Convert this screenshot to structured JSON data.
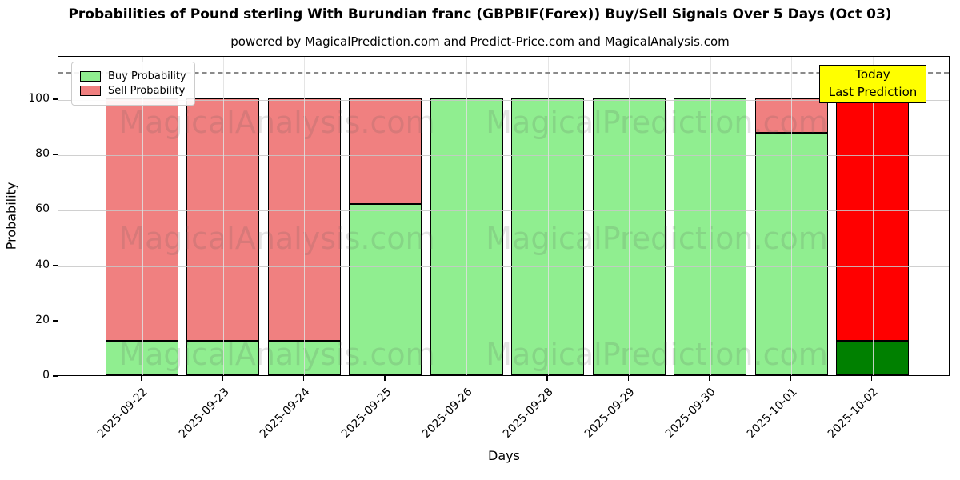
{
  "title": "Probabilities of Pound sterling With Burundian franc (GBPBIF(Forex)) Buy/Sell Signals Over 5 Days (Oct 03)",
  "subtitle": "powered by MagicalPrediction.com and Predict-Price.com and MagicalAnalysis.com",
  "axes": {
    "x_label": "Days",
    "y_label": "Probability",
    "y_ticks": [
      0,
      20,
      40,
      60,
      80,
      100
    ]
  },
  "legend": {
    "items": [
      {
        "label": "Buy Probability",
        "color": "#90EE90"
      },
      {
        "label": "Sell Probability",
        "color": "#F08080"
      }
    ]
  },
  "annotation": {
    "line1": "Today",
    "line2": "Last Prediction",
    "bg_color": "#FFFF00"
  },
  "watermarks": {
    "left_text": "MagicalAnalysis.com",
    "right_text": "MagicalPrediction.com"
  },
  "colors": {
    "buy": "#90EE90",
    "sell": "#F08080",
    "today_buy": "#008000",
    "today_sell": "#FF0000",
    "bar_edge": "#000000",
    "dashed_line": "#8A8A8A",
    "annotation_bg": "#FFFF00"
  },
  "chart_data": {
    "type": "bar",
    "stacked": true,
    "categories": [
      "2025-09-22",
      "2025-09-23",
      "2025-09-24",
      "2025-09-25",
      "2025-09-26",
      "2025-09-28",
      "2025-09-29",
      "2025-09-30",
      "2025-10-01",
      "2025-10-02"
    ],
    "series": [
      {
        "name": "Buy Probability",
        "values": [
          12.5,
          12.5,
          12.5,
          61.8,
          100,
          100,
          100,
          100,
          87.5,
          12.5
        ]
      },
      {
        "name": "Sell Probability",
        "values": [
          87.5,
          87.5,
          87.5,
          38.2,
          0,
          0,
          0,
          0,
          12.5,
          87.5
        ]
      }
    ],
    "today_index": 9,
    "title": "Probabilities of Pound sterling With Burundian franc (GBPBIF(Forex)) Buy/Sell Signals Over 5 Days (Oct 03)",
    "xlabel": "Days",
    "ylabel": "Probability",
    "ylim": [
      0,
      115.6
    ],
    "dashed_line_y": 110,
    "grid": true,
    "legend_position": "upper left"
  }
}
